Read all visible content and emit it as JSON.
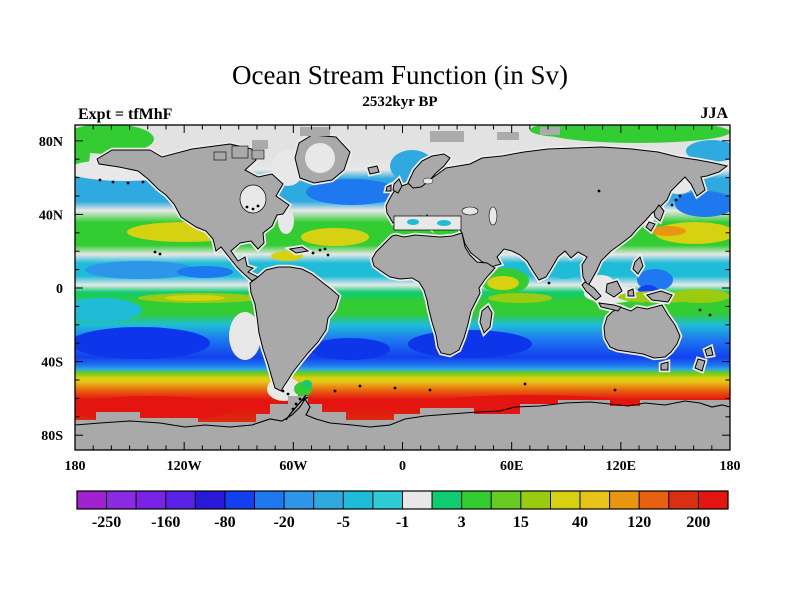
{
  "header": {
    "title": "Ocean Stream Function (in Sv)",
    "subtitle": "2532kyr BP",
    "experiment_label": "Expt = tfMhF",
    "season_label": "JJA"
  },
  "axes": {
    "latitude_ticks": [
      {
        "label": "80N",
        "deg": 80
      },
      {
        "label": "40N",
        "deg": 40
      },
      {
        "label": "0",
        "deg": 0
      },
      {
        "label": "40S",
        "deg": -40
      },
      {
        "label": "80S",
        "deg": -80
      }
    ],
    "longitude_ticks": [
      {
        "label": "180",
        "deg": -180
      },
      {
        "label": "120W",
        "deg": -120
      },
      {
        "label": "60W",
        "deg": -60
      },
      {
        "label": "0",
        "deg": 0
      },
      {
        "label": "60E",
        "deg": 60
      },
      {
        "label": "120E",
        "deg": 120
      },
      {
        "label": "180",
        "deg": 180
      }
    ]
  },
  "colorbar": {
    "tick_labels": [
      "-250",
      "-160",
      "-80",
      "-20",
      "-5",
      "-1",
      "3",
      "15",
      "40",
      "120",
      "200"
    ],
    "n_cells": 22,
    "cell_colors": [
      "#A021D0",
      "#8A2BE2",
      "#7A22E6",
      "#5A22E6",
      "#2A18D8",
      "#1240EE",
      "#1E78F0",
      "#2E96E8",
      "#2FAAE0",
      "#1FBCD8",
      "#2FCCD8",
      "#E8E8E8",
      "#10CC70",
      "#33CC33",
      "#66CC22",
      "#99CC11",
      "#D6D211",
      "#E8C418",
      "#E89610",
      "#E86010",
      "#D83010",
      "#E41410"
    ]
  },
  "map": {
    "land_color": "#A9A9A9",
    "coast_color": "#000000",
    "polar_cap_color": "#E2E2E2",
    "near_zero_color": "#E8E8E8",
    "deep_blue_core": "#0D35EA"
  },
  "chart_data": {
    "type": "heatmap",
    "title": "Ocean Stream Function (in Sv)",
    "subtitle": "2532kyr BP",
    "annotations": [
      "Expt = tfMhF",
      "JJA"
    ],
    "projection": "equirectangular world map, filled contours of ocean barotropic stream function",
    "x_axis": {
      "tick_labels": [
        "180",
        "120W",
        "60W",
        "0",
        "60E",
        "120E",
        "180"
      ],
      "range_deg": [
        -180,
        180
      ],
      "minor_tick_deg": 10
    },
    "y_axis": {
      "tick_labels": [
        "80N",
        "40N",
        "0",
        "40S",
        "80S"
      ],
      "range_deg": [
        -88,
        88
      ],
      "minor_tick_deg": 10
    },
    "colorbar": {
      "tick_labels": [
        -250,
        -160,
        -80,
        -20,
        -5,
        -1,
        3,
        15,
        40,
        120,
        200
      ],
      "n_cells": 22,
      "cell_colors": [
        "#A021D0",
        "#8A2BE2",
        "#7A22E6",
        "#5A22E6",
        "#2A18D8",
        "#1240EE",
        "#1E78F0",
        "#2E96E8",
        "#2FAAE0",
        "#1FBCD8",
        "#2FCCD8",
        "#E8E8E8",
        "#10CC70",
        "#33CC33",
        "#66CC22",
        "#99CC11",
        "#D6D211",
        "#E8C418",
        "#E89610",
        "#E86010",
        "#D83010",
        "#E41410"
      ],
      "labels_at": "every second cell boundary"
    },
    "land_color": "#A9A9A9",
    "features": [
      "Antarctic Circumpolar band ~45S-70S with values 40 to >200 Sv (yellow-orange-red), strongest (red, >200) near 55S-65S",
      "Southern subtropical gyres -20 to -80 Sv (blue), darkest cores in S Pacific, S Atlantic and S Indian around 30-40S",
      "Northern subtropical gyres +3 to +40 Sv (green with yellow cores) in N Pacific and N Atlantic around 20-35N",
      "Kuroshio extension local maximum ~120 Sv (orange streak) east of Japan",
      "Subpolar N Atlantic and N Pacific -5 to -20 Sv (cyan/blue) around 45-60N",
      "Near-zero band (-1 to 1 Sv, light gray) along coasts, equator and Arctic polar cap",
      "Continents and Antarctica masked gray with blocky model land mask"
    ]
  }
}
